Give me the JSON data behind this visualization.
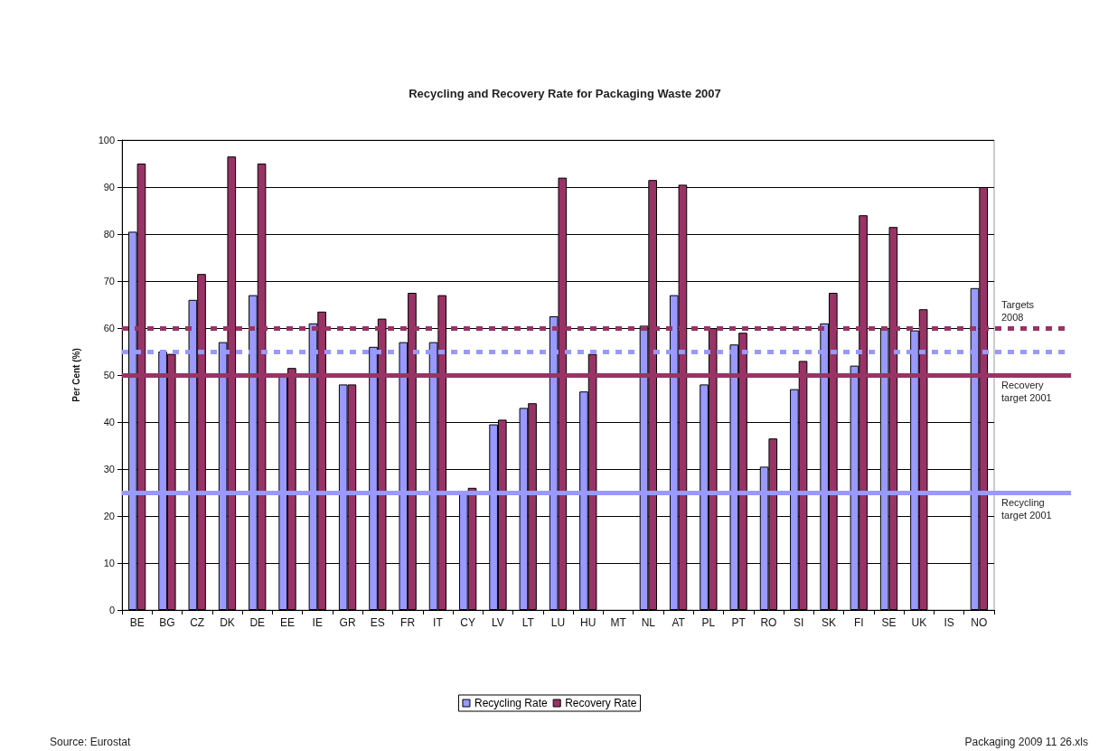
{
  "chart_data": {
    "type": "bar",
    "title": "Recycling and Recovery Rate for Packaging Waste 2007",
    "ylabel": "Per Cent (%)",
    "categories": [
      "BE",
      "BG",
      "CZ",
      "DK",
      "DE",
      "EE",
      "IE",
      "GR",
      "ES",
      "FR",
      "IT",
      "CY",
      "LV",
      "LT",
      "LU",
      "HU",
      "MT",
      "NL",
      "AT",
      "PL",
      "PT",
      "RO",
      "SI",
      "SK",
      "FI",
      "SE",
      "UK",
      "IS",
      "NO"
    ],
    "series": [
      {
        "name": "Recycling Rate",
        "color": "#9999ff",
        "values": [
          80.5,
          55,
          66,
          57,
          67,
          50,
          61,
          48,
          56,
          57,
          57,
          25,
          39.5,
          43,
          62.5,
          46.5,
          null,
          60.5,
          67,
          48,
          56.5,
          30.5,
          47,
          61,
          52,
          60,
          59.5,
          null,
          68.5
        ]
      },
      {
        "name": "Recovery Rate",
        "color": "#993366",
        "values": [
          95,
          54.5,
          71.5,
          96.5,
          95,
          51.5,
          63.5,
          48,
          62,
          67.5,
          67,
          26,
          40.5,
          44,
          92,
          54.5,
          null,
          91.5,
          90.5,
          60,
          59,
          36.5,
          53,
          67.5,
          84,
          81.5,
          64,
          null,
          90
        ]
      }
    ],
    "ylim": [
      0,
      100
    ],
    "yticks": [
      0,
      10,
      20,
      30,
      40,
      50,
      60,
      70,
      80,
      90,
      100
    ],
    "grid": "y",
    "legend": "bottom",
    "ref_lines": [
      {
        "axis": "y",
        "value": 60,
        "label": "Targets 2008",
        "color": "#993366",
        "line_style": "dashed"
      },
      {
        "axis": "y",
        "value": 55,
        "label": null,
        "color": "#9999ff",
        "line_style": "dashed"
      },
      {
        "axis": "y",
        "value": 50,
        "label": "Recovery target 2001",
        "color": "#993366",
        "line_style": "solid"
      },
      {
        "axis": "y",
        "value": 25,
        "label": "Recycling target 2001",
        "color": "#9999ff",
        "line_style": "solid"
      }
    ],
    "annotations": [
      "Source: Eurostat",
      "Packaging 2009 11 26.xls"
    ]
  }
}
